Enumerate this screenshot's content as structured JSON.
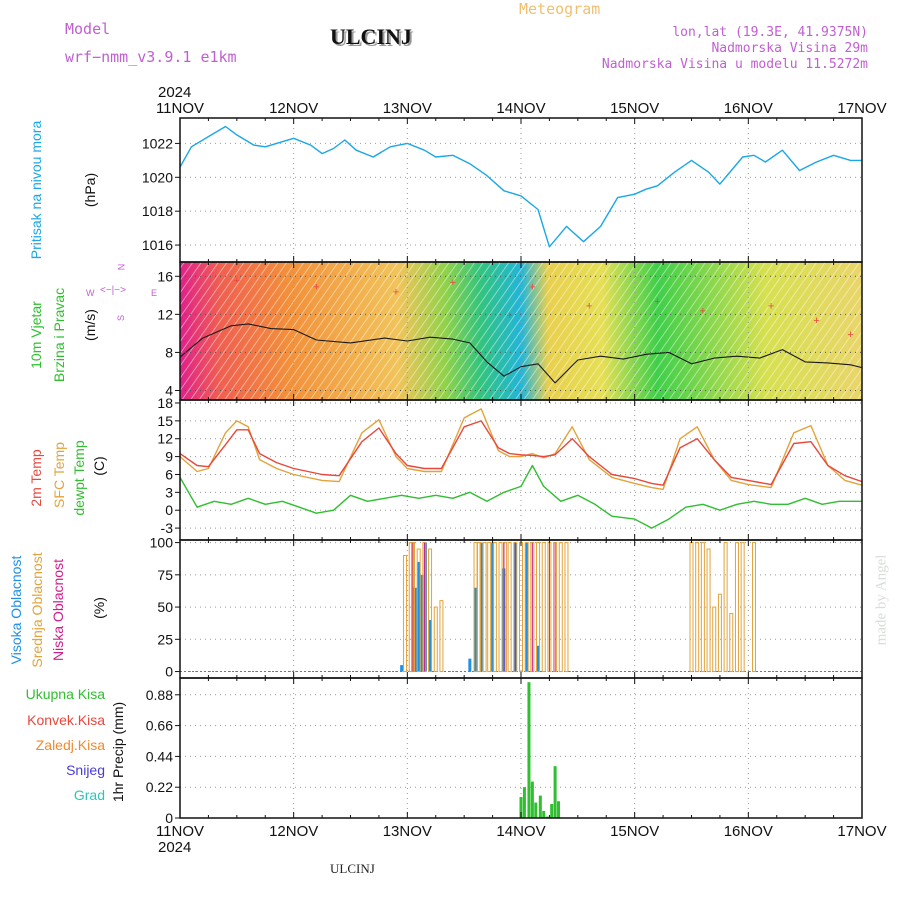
{
  "header": {
    "model_label": "Model",
    "model_value": "wrf−nmm_v3.9.1  e1km",
    "station": "ULCINJ",
    "meteogram": "Meteogram",
    "lonlat": "lon,lat (19.3E, 41.9375N)",
    "elev": "Nadmorska Visina 29m",
    "elev_model": "Nadmorska Visina u modelu 11.5272m",
    "year_top": "2024",
    "year_bottom": "2024",
    "footer_station": "ULCINJ",
    "credit": "made by Angel"
  },
  "colors": {
    "pressure": "#1aa7e6",
    "temp2m": "#e8473c",
    "sfc": "#e3a33a",
    "dew": "#2fbf2f",
    "high_cloud": "#1e90e6",
    "mid_cloud": "#e3a33a",
    "low_cloud": "#d01c8b",
    "precip_total": "#2fbf2f",
    "precip_conv": "#e8473c",
    "precip_strat": "#f08a2e",
    "snow": "#4a3bd6",
    "grad": "#2ec4b6",
    "model_label": "#c060d0"
  },
  "chart_data": [
    {
      "type": "line",
      "title": "",
      "ylabel_lines": [
        "Pritisak na nivou mora",
        "(hPa)"
      ],
      "x_ticks": [
        "11NOV",
        "12NOV",
        "13NOV",
        "14NOV",
        "15NOV",
        "16NOV",
        "17NOV"
      ],
      "ylim": [
        1015,
        1023.5
      ],
      "y_ticks": [
        1016,
        1018,
        1020,
        1022
      ],
      "grid": true,
      "series": [
        {
          "name": "Pritisak na nivou mora",
          "x": [
            0,
            0.1,
            0.25,
            0.4,
            0.5,
            0.65,
            0.75,
            0.9,
            1.0,
            1.15,
            1.25,
            1.35,
            1.45,
            1.55,
            1.7,
            1.85,
            2.0,
            2.15,
            2.25,
            2.4,
            2.55,
            2.7,
            2.85,
            3.0,
            3.15,
            3.25,
            3.4,
            3.55,
            3.7,
            3.85,
            4.0,
            4.1,
            4.2,
            4.35,
            4.5,
            4.65,
            4.75,
            4.85,
            4.95,
            5.05,
            5.15,
            5.3,
            5.45,
            5.6,
            5.75,
            5.9,
            6.0
          ],
          "values": [
            1020.6,
            1021.8,
            1022.4,
            1023.0,
            1022.5,
            1021.9,
            1021.8,
            1022.1,
            1022.3,
            1021.9,
            1021.4,
            1021.7,
            1022.2,
            1021.6,
            1021.2,
            1021.8,
            1022.0,
            1021.6,
            1021.2,
            1021.3,
            1020.8,
            1020.1,
            1019.2,
            1018.9,
            1018.1,
            1015.9,
            1017.1,
            1016.2,
            1017.1,
            1018.8,
            1019.0,
            1019.3,
            1019.5,
            1020.3,
            1021.0,
            1020.3,
            1019.6,
            1020.4,
            1021.2,
            1021.3,
            1020.9,
            1021.6,
            1020.4,
            1020.9,
            1021.3,
            1021.0,
            1021.0
          ]
        }
      ]
    },
    {
      "type": "line",
      "title": "",
      "ylabel_lines": [
        "10m Vjetar",
        "Brzina i Pravac",
        "(m/s)"
      ],
      "compass": [
        "N",
        "S",
        "W",
        "E"
      ],
      "ylim": [
        3,
        17.5
      ],
      "y_ticks": [
        4,
        8,
        12,
        16
      ],
      "grid": true,
      "series": [
        {
          "name": "10m Vjetar",
          "x": [
            0,
            0.2,
            0.45,
            0.6,
            0.8,
            1.0,
            1.2,
            1.5,
            1.8,
            2.0,
            2.2,
            2.4,
            2.55,
            2.7,
            2.85,
            3.0,
            3.15,
            3.3,
            3.5,
            3.7,
            3.9,
            4.1,
            4.3,
            4.5,
            4.7,
            4.9,
            5.1,
            5.3,
            5.5,
            5.7,
            5.9,
            6.0
          ],
          "values": [
            7.5,
            9.5,
            10.8,
            11.0,
            10.5,
            10.4,
            9.3,
            9.0,
            9.5,
            9.2,
            9.6,
            9.4,
            9.0,
            7.0,
            5.5,
            6.5,
            6.8,
            4.8,
            7.2,
            7.6,
            7.3,
            7.8,
            8.0,
            6.8,
            7.4,
            7.6,
            7.4,
            8.3,
            7.0,
            6.9,
            6.7,
            6.4
          ]
        }
      ]
    },
    {
      "type": "line",
      "title": "",
      "ylabel_lines": [
        "2m Temp",
        "SFC Temp",
        "dewpt Temp",
        "(C)"
      ],
      "ylim": [
        -5,
        18.5
      ],
      "y_ticks": [
        -3,
        0,
        3,
        6,
        9,
        12,
        15,
        18
      ],
      "grid": true,
      "series": [
        {
          "name": "2m Temp",
          "x": [
            0,
            0.15,
            0.25,
            0.4,
            0.5,
            0.6,
            0.7,
            0.85,
            1.0,
            1.25,
            1.4,
            1.6,
            1.75,
            1.9,
            2.0,
            2.15,
            2.3,
            2.5,
            2.65,
            2.8,
            2.9,
            3.0,
            3.1,
            3.2,
            3.3,
            3.45,
            3.6,
            3.8,
            4.0,
            4.15,
            4.25,
            4.4,
            4.55,
            4.7,
            4.85,
            5.0,
            5.2,
            5.4,
            5.55,
            5.7,
            5.85,
            6.0
          ],
          "values": [
            9.5,
            7.5,
            7.3,
            11.0,
            13.5,
            13.5,
            9.5,
            8.0,
            7.0,
            6.0,
            5.8,
            11.5,
            13.8,
            9.5,
            7.5,
            7.0,
            7.0,
            14.0,
            15.0,
            10.5,
            9.5,
            9.3,
            9.2,
            9.0,
            9.3,
            12.0,
            9.0,
            6.0,
            5.3,
            4.5,
            4.2,
            10.5,
            12.0,
            8.5,
            5.5,
            5.0,
            4.3,
            11.2,
            11.5,
            7.5,
            5.8,
            4.8
          ]
        },
        {
          "name": "SFC Temp",
          "x": [
            0,
            0.15,
            0.25,
            0.4,
            0.5,
            0.6,
            0.7,
            0.85,
            1.0,
            1.25,
            1.4,
            1.6,
            1.75,
            1.9,
            2.0,
            2.15,
            2.3,
            2.5,
            2.65,
            2.8,
            2.9,
            3.0,
            3.1,
            3.2,
            3.3,
            3.45,
            3.6,
            3.8,
            4.0,
            4.15,
            4.25,
            4.4,
            4.55,
            4.7,
            4.85,
            5.0,
            5.2,
            5.4,
            5.55,
            5.7,
            5.85,
            6.0
          ],
          "values": [
            9.0,
            6.5,
            7.0,
            13.0,
            15.0,
            14.0,
            8.5,
            7.0,
            6.0,
            5.0,
            4.8,
            13.0,
            15.2,
            9.0,
            7.0,
            6.5,
            6.5,
            15.5,
            17.0,
            10.0,
            9.0,
            9.0,
            9.5,
            8.8,
            9.5,
            14.0,
            8.5,
            5.5,
            4.5,
            3.8,
            3.5,
            12.0,
            14.0,
            8.5,
            5.0,
            4.3,
            3.8,
            13.0,
            14.2,
            7.5,
            5.0,
            4.2
          ]
        },
        {
          "name": "dewpt Temp",
          "x": [
            0,
            0.15,
            0.3,
            0.45,
            0.6,
            0.75,
            0.9,
            1.05,
            1.2,
            1.35,
            1.5,
            1.65,
            1.8,
            1.95,
            2.1,
            2.25,
            2.4,
            2.55,
            2.7,
            2.85,
            3.0,
            3.1,
            3.2,
            3.35,
            3.5,
            3.65,
            3.8,
            4.0,
            4.15,
            4.3,
            4.45,
            4.6,
            4.75,
            4.9,
            5.05,
            5.2,
            5.35,
            5.5,
            5.65,
            5.8,
            6.0
          ],
          "values": [
            5.5,
            0.5,
            1.5,
            1.0,
            2.0,
            1.0,
            1.5,
            0.5,
            -0.5,
            0,
            2.5,
            1.5,
            2.0,
            2.5,
            2.0,
            2.5,
            2.0,
            3.0,
            1.5,
            3.0,
            4.0,
            7.5,
            4.0,
            1.5,
            2.5,
            1.0,
            -1.0,
            -1.5,
            -3.0,
            -1.5,
            0.5,
            1.0,
            0,
            1.0,
            1.5,
            1.0,
            1.0,
            2.0,
            1.0,
            1.5,
            1.5
          ]
        }
      ]
    },
    {
      "type": "bar",
      "title": "",
      "ylabel_lines": [
        "Visoka Oblacnost",
        "Srednja Oblacnost",
        "Niska Oblacnost",
        "(%)"
      ],
      "ylim": [
        -5,
        102
      ],
      "y_ticks": [
        0,
        25,
        50,
        75,
        100
      ],
      "grid": true,
      "series": [
        {
          "name": "Visoka Oblacnost",
          "x": [
            1.95,
            2.07,
            2.1,
            2.13,
            2.16,
            2.2,
            2.55,
            2.6,
            2.65,
            2.75,
            2.85,
            2.95,
            3.05,
            3.15
          ],
          "values": [
            5,
            65,
            85,
            75,
            100,
            40,
            10,
            65,
            100,
            100,
            80,
            100,
            100,
            20
          ]
        },
        {
          "name": "Srednja Oblacnost",
          "x": [
            1.98,
            2.03,
            2.05,
            2.1,
            2.15,
            2.2,
            2.25,
            2.3,
            2.6,
            2.63,
            2.68,
            2.72,
            2.77,
            2.82,
            2.86,
            2.9,
            2.95,
            3.0,
            3.05,
            3.1,
            3.15,
            3.2,
            3.25,
            3.3,
            3.35,
            3.4,
            4.5,
            4.55,
            4.6,
            4.65,
            4.7,
            4.75,
            4.8,
            4.85,
            4.9,
            4.95,
            5.05
          ],
          "values": [
            90,
            100,
            100,
            95,
            100,
            95,
            50,
            55,
            100,
            100,
            100,
            100,
            100,
            100,
            100,
            100,
            100,
            100,
            100,
            100,
            100,
            100,
            100,
            100,
            100,
            100,
            100,
            100,
            100,
            95,
            50,
            60,
            100,
            45,
            100,
            100,
            100
          ]
        },
        {
          "name": "Niska Oblacnost",
          "x": [
            2.05,
            2.15,
            2.85,
            2.95,
            3.1,
            3.25,
            3.3
          ],
          "values": [
            100,
            100,
            100,
            100,
            100,
            100,
            100
          ]
        }
      ]
    },
    {
      "type": "bar",
      "title": "",
      "ylabel_lines": [
        "1hr Precip (mm)"
      ],
      "legend_entries": [
        "Ukupna Kisa",
        "Konvek.Kisa",
        "Zaledj.Kisa",
        "Snijeg",
        "Grad"
      ],
      "ylim": [
        0,
        1.0
      ],
      "y_ticks": [
        0,
        0.22,
        0.44,
        0.66,
        0.88
      ],
      "grid": true,
      "series": [
        {
          "name": "Ukupna Kisa",
          "x": [
            3.0,
            3.03,
            3.07,
            3.1,
            3.13,
            3.17,
            3.2,
            3.23,
            3.27,
            3.3,
            3.33
          ],
          "values": [
            0.15,
            0.22,
            0.97,
            0.26,
            0.11,
            0.16,
            0.05,
            0.01,
            0.1,
            0.37,
            0.12
          ]
        }
      ]
    }
  ]
}
